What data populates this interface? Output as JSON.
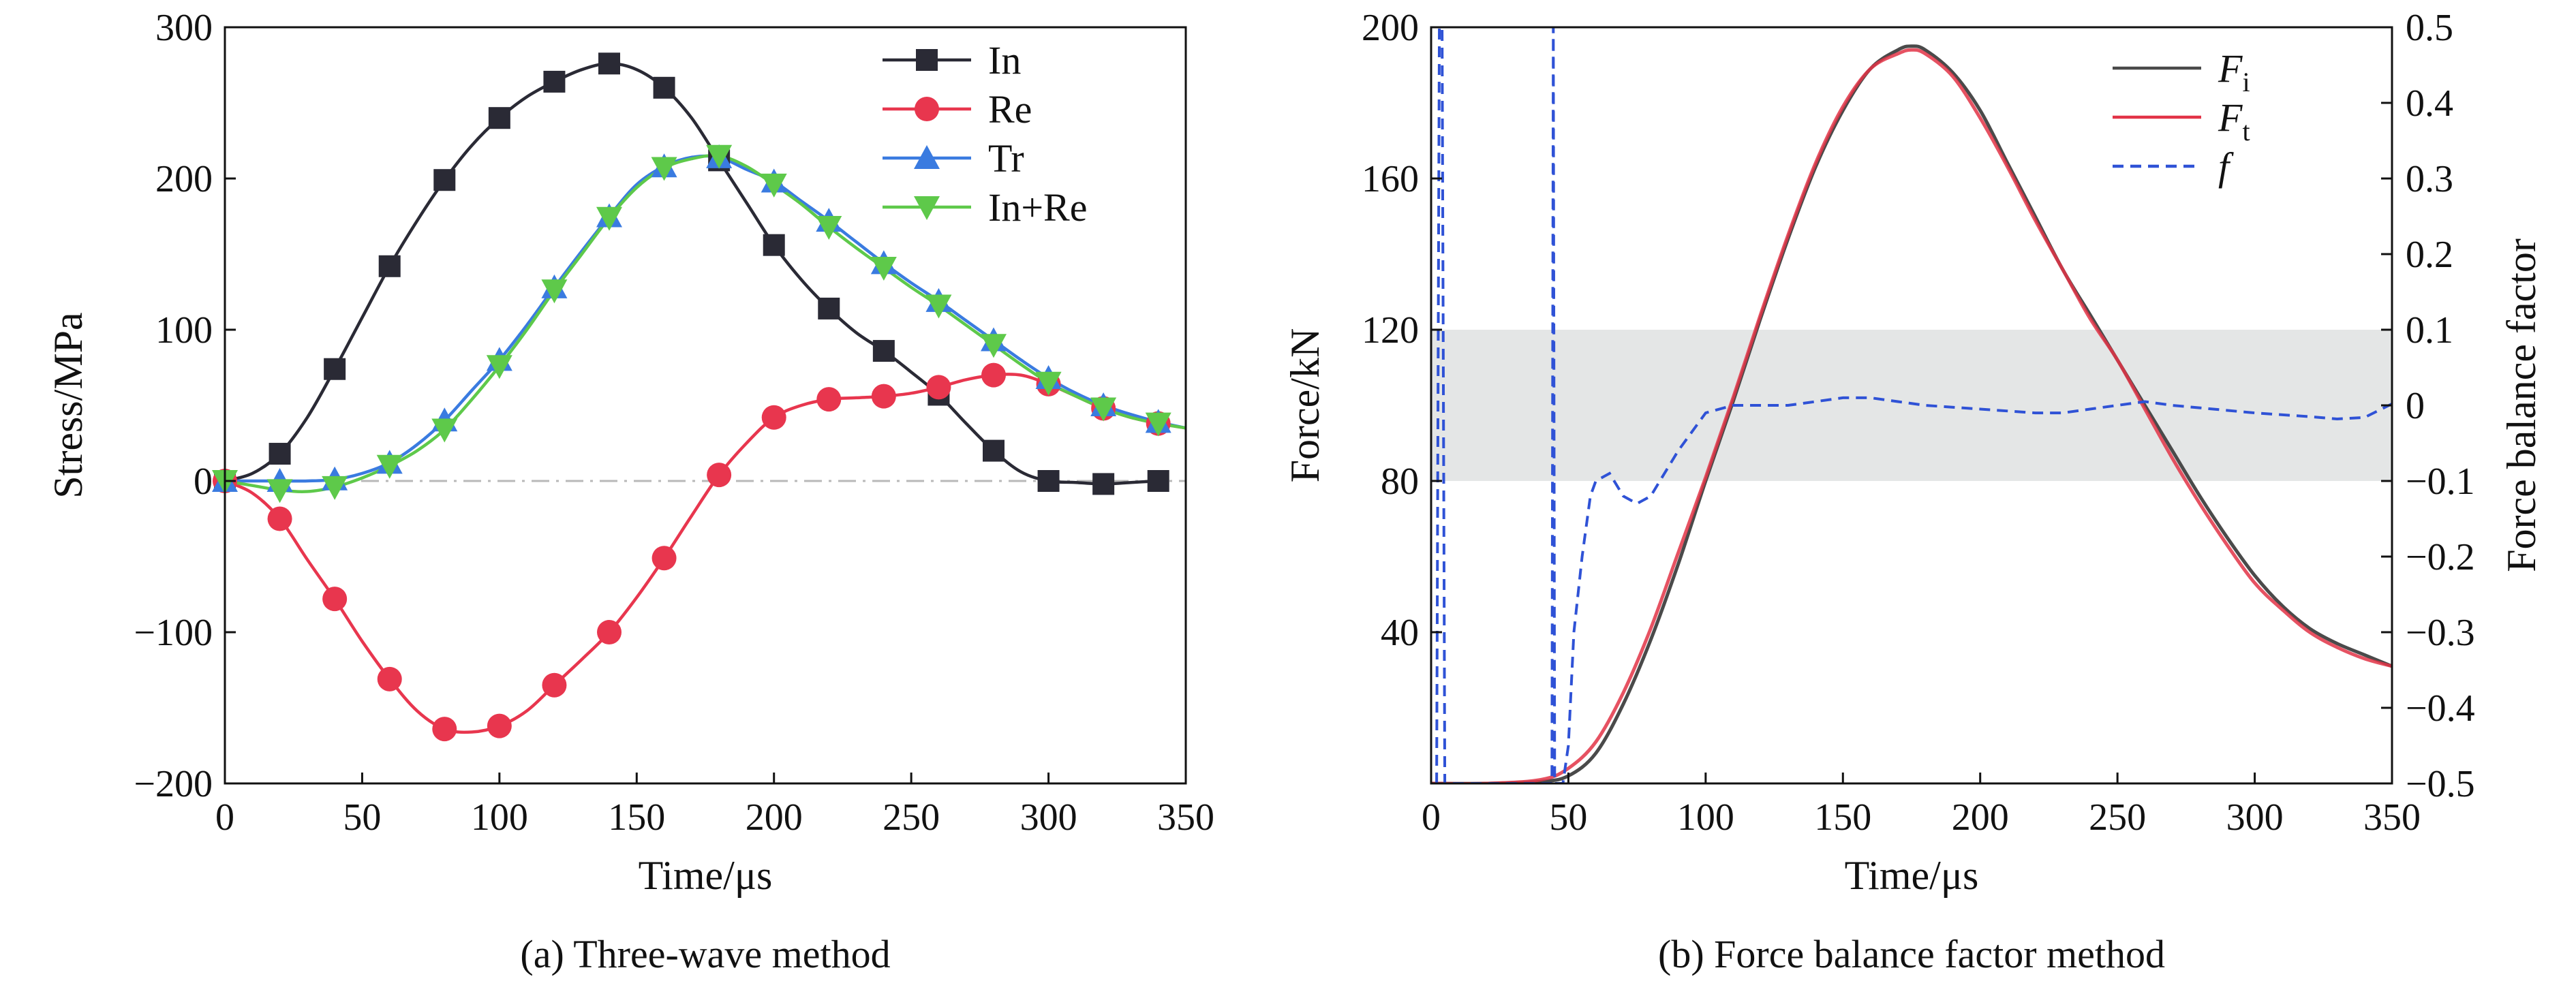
{
  "chart_data": [
    {
      "type": "line",
      "caption": "(a) Three-wave method",
      "xlabel": "Time/μs",
      "ylabel": "Stress/MPa",
      "xlim": [
        0,
        350
      ],
      "ylim": [
        -200,
        300
      ],
      "xticks": [
        0,
        50,
        100,
        150,
        200,
        250,
        300,
        350
      ],
      "yticks": [
        -200,
        -100,
        0,
        100,
        200,
        300
      ],
      "xtick_labels": [
        "0",
        "50",
        "100",
        "150",
        "200",
        "250",
        "300",
        "350"
      ],
      "ytick_labels": [
        "−200",
        "−100",
        "0",
        "100",
        "200",
        "300"
      ],
      "grid": false,
      "legend_position": "top-right",
      "zero_line": {
        "y": 0,
        "style": "dash-dot",
        "color": "#b8b8b8"
      },
      "series": [
        {
          "name": "In",
          "color": "#2a2a35",
          "marker": "square",
          "curve_x": [
            0,
            10,
            20,
            30,
            40,
            50,
            60,
            70,
            80,
            90,
            100,
            110,
            120,
            130,
            140,
            150,
            160,
            170,
            180,
            190,
            200,
            210,
            220,
            230,
            240,
            250,
            260,
            270,
            280,
            290,
            300,
            310,
            320,
            330,
            340
          ],
          "curve_y": [
            0,
            5,
            18,
            42,
            74,
            108,
            142,
            172,
            199,
            222,
            240,
            254,
            264,
            272,
            276,
            272,
            260,
            240,
            212,
            184,
            156,
            133,
            114,
            98,
            86,
            72,
            57,
            38,
            20,
            6,
            0,
            -1,
            -2,
            -1,
            0
          ],
          "markers_x": [
            0,
            20,
            40,
            60,
            80,
            100,
            120,
            140,
            160,
            180,
            200,
            220,
            240,
            260,
            280,
            300,
            320,
            340
          ],
          "markers_y": [
            0,
            18,
            74,
            142,
            199,
            240,
            264,
            276,
            260,
            212,
            156,
            114,
            86,
            57,
            20,
            0,
            -2,
            0
          ]
        },
        {
          "name": "Re",
          "color": "#e8364e",
          "marker": "circle",
          "curve_x": [
            0,
            10,
            20,
            30,
            40,
            50,
            60,
            70,
            80,
            90,
            100,
            110,
            120,
            130,
            140,
            150,
            160,
            170,
            180,
            190,
            200,
            210,
            220,
            230,
            240,
            250,
            260,
            270,
            280,
            290,
            300,
            310,
            320,
            330,
            340,
            350
          ],
          "curve_y": [
            0,
            -8,
            -25,
            -52,
            -78,
            -106,
            -131,
            -152,
            -164,
            -166,
            -162,
            -152,
            -135,
            -118,
            -100,
            -77,
            -51,
            -23,
            4,
            25,
            42,
            50,
            54,
            55,
            56,
            58,
            62,
            67,
            70,
            70,
            64,
            56,
            48,
            42,
            38,
            35
          ],
          "markers_x": [
            0,
            20,
            40,
            60,
            80,
            100,
            120,
            140,
            160,
            180,
            200,
            220,
            240,
            260,
            280,
            300,
            320,
            340
          ],
          "markers_y": [
            0,
            -25,
            -78,
            -131,
            -164,
            -162,
            -135,
            -100,
            -51,
            4,
            42,
            54,
            56,
            62,
            70,
            64,
            48,
            38
          ]
        },
        {
          "name": "Tr",
          "color": "#3a7be0",
          "marker": "triangle-up",
          "curve_x": [
            0,
            10,
            20,
            30,
            40,
            50,
            60,
            70,
            80,
            90,
            100,
            110,
            120,
            130,
            140,
            150,
            160,
            170,
            180,
            190,
            200,
            210,
            220,
            230,
            240,
            250,
            260,
            270,
            280,
            290,
            300,
            310,
            320,
            330,
            340,
            350
          ],
          "curve_y": [
            0,
            0,
            0,
            0,
            1,
            5,
            12,
            24,
            40,
            60,
            80,
            103,
            128,
            152,
            175,
            196,
            208,
            214,
            214,
            206,
            198,
            185,
            172,
            158,
            144,
            131,
            119,
            106,
            93,
            80,
            68,
            58,
            50,
            44,
            39,
            35
          ],
          "markers_x": [
            0,
            20,
            40,
            60,
            80,
            100,
            120,
            140,
            160,
            180,
            200,
            220,
            240,
            260,
            280,
            300,
            320,
            340
          ],
          "markers_y": [
            0,
            0,
            1,
            12,
            40,
            80,
            128,
            175,
            208,
            214,
            198,
            172,
            144,
            119,
            93,
            68,
            50,
            39
          ]
        },
        {
          "name": "In+Re",
          "color": "#5ec94a",
          "marker": "triangle-down",
          "curve_x": [
            0,
            10,
            20,
            30,
            40,
            50,
            60,
            70,
            80,
            90,
            100,
            110,
            120,
            130,
            140,
            150,
            160,
            170,
            180,
            190,
            200,
            210,
            220,
            230,
            240,
            250,
            260,
            270,
            280,
            290,
            300,
            310,
            320,
            330,
            340,
            350
          ],
          "curve_y": [
            0,
            -3,
            -6,
            -7,
            -4,
            2,
            10,
            20,
            34,
            54,
            76,
            100,
            126,
            150,
            174,
            194,
            207,
            213,
            215,
            208,
            196,
            183,
            168,
            154,
            141,
            128,
            116,
            103,
            90,
            77,
            65,
            56,
            48,
            42,
            38,
            35
          ],
          "markers_x": [
            0,
            20,
            40,
            60,
            80,
            100,
            120,
            140,
            160,
            180,
            200,
            220,
            240,
            260,
            280,
            300,
            320,
            340
          ],
          "markers_y": [
            0,
            -6,
            -4,
            10,
            34,
            76,
            126,
            174,
            207,
            215,
            196,
            168,
            141,
            116,
            90,
            65,
            48,
            38
          ]
        }
      ]
    },
    {
      "type": "line",
      "caption": "(b) Force balance factor method",
      "xlabel": "Time/μs",
      "ylabel": "Force/kN",
      "y2label": "Force balance factor",
      "xlim": [
        0,
        350
      ],
      "ylim": [
        0,
        200
      ],
      "y2lim": [
        -0.5,
        0.5
      ],
      "xticks": [
        0,
        50,
        100,
        150,
        200,
        250,
        300,
        350
      ],
      "yticks": [
        40,
        80,
        120,
        160,
        200
      ],
      "y2ticks": [
        -0.5,
        -0.4,
        -0.3,
        -0.2,
        -0.1,
        0,
        0.1,
        0.2,
        0.3,
        0.4,
        0.5
      ],
      "xtick_labels": [
        "0",
        "50",
        "100",
        "150",
        "200",
        "250",
        "300",
        "350"
      ],
      "ytick_labels": [
        "40",
        "80",
        "120",
        "160",
        "200"
      ],
      "y2tick_labels": [
        "−0.5",
        "−0.4",
        "−0.3",
        "−0.2",
        "−0.1",
        "0",
        "0.1",
        "0.2",
        "0.3",
        "0.4",
        "0.5"
      ],
      "grid": false,
      "legend_position": "top-right",
      "shaded_band": {
        "axis": "y2",
        "from": -0.1,
        "to": 0.1,
        "color": "#e4e6e6"
      },
      "series": [
        {
          "name": "F",
          "subscript": "i",
          "color": "#4a4a4a",
          "style": "solid",
          "axis": "y",
          "x": [
            0,
            20,
            40,
            50,
            60,
            70,
            80,
            90,
            100,
            110,
            120,
            130,
            140,
            150,
            160,
            170,
            175,
            180,
            190,
            200,
            210,
            220,
            230,
            240,
            250,
            260,
            270,
            280,
            290,
            300,
            310,
            320,
            330,
            340,
            350
          ],
          "y": [
            0,
            0,
            0.5,
            2,
            8,
            21,
            38,
            58,
            80,
            101,
            123,
            144,
            163,
            178,
            189,
            194,
            195,
            194,
            188,
            178,
            164,
            150,
            136,
            124,
            112,
            100,
            88,
            76,
            65,
            55,
            47,
            41,
            37,
            34,
            31
          ]
        },
        {
          "name": "F",
          "subscript": "t",
          "color": "#e23447",
          "style": "solid",
          "axis": "y",
          "x": [
            0,
            20,
            40,
            50,
            60,
            70,
            80,
            90,
            100,
            110,
            120,
            130,
            140,
            150,
            160,
            170,
            175,
            180,
            190,
            200,
            210,
            220,
            230,
            240,
            250,
            260,
            270,
            280,
            290,
            300,
            310,
            320,
            330,
            340,
            350
          ],
          "y": [
            0,
            0,
            1,
            4,
            11,
            24,
            41,
            61,
            81,
            102,
            124,
            145,
            164,
            179,
            189,
            193,
            194,
            193,
            187,
            176,
            163,
            149,
            136,
            123,
            112,
            99,
            86,
            74,
            63,
            53,
            46,
            40,
            36,
            33,
            31
          ]
        },
        {
          "name": "f",
          "subscript": "",
          "color": "#2f52d6",
          "style": "dashed",
          "axis": "y2",
          "x": [
            2,
            3,
            4,
            5,
            6,
            44,
            44.5,
            45,
            48,
            50,
            52,
            55,
            58,
            60,
            65,
            70,
            75,
            80,
            85,
            90,
            100,
            110,
            120,
            130,
            140,
            150,
            160,
            170,
            180,
            200,
            220,
            230,
            240,
            260,
            270,
            300,
            320,
            330,
            340,
            350
          ],
          "y": [
            -0.5,
            0.5,
            0.5,
            -0.5,
            -0.5,
            -0.5,
            0.5,
            -0.5,
            -0.5,
            -0.45,
            -0.3,
            -0.2,
            -0.12,
            -0.1,
            -0.09,
            -0.12,
            -0.13,
            -0.12,
            -0.09,
            -0.06,
            -0.01,
            0,
            0,
            0,
            0.005,
            0.01,
            0.01,
            0.005,
            0,
            -0.005,
            -0.01,
            -0.01,
            -0.005,
            0.005,
            0,
            -0.01,
            -0.015,
            -0.018,
            -0.016,
            0.002
          ]
        }
      ]
    }
  ]
}
